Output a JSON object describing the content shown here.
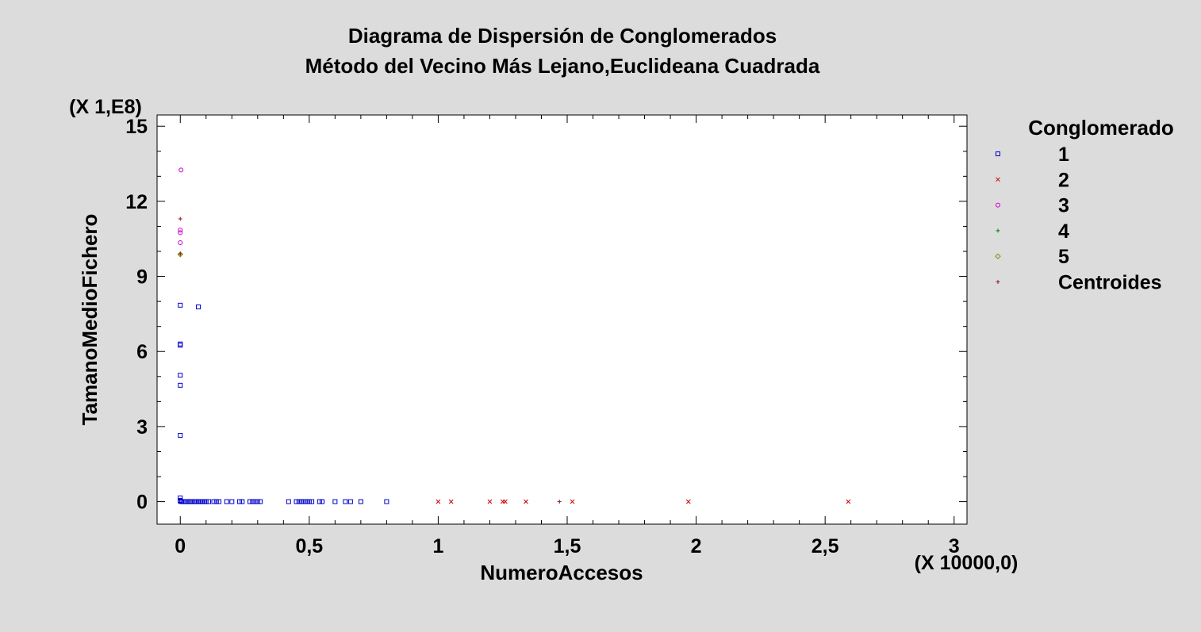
{
  "chart_data": {
    "type": "scatter",
    "title": "Diagrama de Dispersión de Conglomerados",
    "subtitle": "Método del Vecino Más Lejano,Euclideana Cuadrada",
    "xlabel": "NumeroAccesos",
    "ylabel": "TamanoMedioFichero",
    "x_multiplier": "(X 10000,0)",
    "y_multiplier": "(X 1,E8)",
    "xlim": [
      -0.09,
      3.05
    ],
    "ylim": [
      -0.9,
      15.45
    ],
    "x_ticks": [
      0,
      0.5,
      1,
      1.5,
      2,
      2.5,
      3
    ],
    "x_tick_labels": [
      "0",
      "0,5",
      "1",
      "1,5",
      "2",
      "2,5",
      "3"
    ],
    "y_ticks": [
      0,
      3,
      6,
      9,
      12,
      15
    ],
    "y_tick_labels": [
      "0",
      "3",
      "6",
      "9",
      "12",
      "15"
    ],
    "grid": false,
    "legend_position": "right",
    "legend_title": "Conglomerado",
    "series": [
      {
        "name": "1",
        "marker": "square",
        "color": "#0000cc",
        "points": [
          [
            0.0,
            0.02
          ],
          [
            0.005,
            0.0
          ],
          [
            0.01,
            0.0
          ],
          [
            0.015,
            0.0
          ],
          [
            0.02,
            0.0
          ],
          [
            0.025,
            0.0
          ],
          [
            0.03,
            0.0
          ],
          [
            0.035,
            0.0
          ],
          [
            0.04,
            0.0
          ],
          [
            0.045,
            0.0
          ],
          [
            0.05,
            0.0
          ],
          [
            0.055,
            0.0
          ],
          [
            0.06,
            0.0
          ],
          [
            0.065,
            0.0
          ],
          [
            0.07,
            0.0
          ],
          [
            0.075,
            0.0
          ],
          [
            0.08,
            0.0
          ],
          [
            0.085,
            0.0
          ],
          [
            0.09,
            0.0
          ],
          [
            0.095,
            0.0
          ],
          [
            0.1,
            0.0
          ],
          [
            0.11,
            0.0
          ],
          [
            0.13,
            0.0
          ],
          [
            0.14,
            0.0
          ],
          [
            0.15,
            0.0
          ],
          [
            0.18,
            0.0
          ],
          [
            0.2,
            0.0
          ],
          [
            0.23,
            0.0
          ],
          [
            0.24,
            0.0
          ],
          [
            0.27,
            0.0
          ],
          [
            0.28,
            0.0
          ],
          [
            0.29,
            0.0
          ],
          [
            0.3,
            0.0
          ],
          [
            0.31,
            0.0
          ],
          [
            0.42,
            0.0
          ],
          [
            0.45,
            0.0
          ],
          [
            0.46,
            0.0
          ],
          [
            0.47,
            0.0
          ],
          [
            0.48,
            0.0
          ],
          [
            0.49,
            0.0
          ],
          [
            0.5,
            0.0
          ],
          [
            0.51,
            0.0
          ],
          [
            0.54,
            0.0
          ],
          [
            0.55,
            0.0
          ],
          [
            0.6,
            0.0
          ],
          [
            0.64,
            0.0
          ],
          [
            0.66,
            0.0
          ],
          [
            0.7,
            0.0
          ],
          [
            0.8,
            0.0
          ],
          [
            0.0,
            0.15
          ],
          [
            0.0,
            0.05
          ],
          [
            0.0,
            2.65
          ],
          [
            0.0,
            4.65
          ],
          [
            0.0,
            5.05
          ],
          [
            0.0,
            6.25
          ],
          [
            0.0,
            6.3
          ],
          [
            0.0,
            7.85
          ],
          [
            0.07,
            7.78
          ]
        ]
      },
      {
        "name": "2",
        "marker": "x",
        "color": "#cc0000",
        "points": [
          [
            1.0,
            0.0
          ],
          [
            1.05,
            0.0
          ],
          [
            1.2,
            0.0
          ],
          [
            1.25,
            0.0
          ],
          [
            1.26,
            0.0
          ],
          [
            1.34,
            0.0
          ],
          [
            1.52,
            0.0
          ],
          [
            1.97,
            0.0
          ],
          [
            2.59,
            0.0
          ]
        ]
      },
      {
        "name": "3",
        "marker": "circle",
        "color": "#cc00cc",
        "points": [
          [
            0.003,
            13.25
          ],
          [
            0.0,
            10.85
          ],
          [
            0.0,
            10.75
          ],
          [
            0.0,
            10.35
          ]
        ]
      },
      {
        "name": "4",
        "marker": "plus",
        "color": "#008800",
        "points": [
          [
            0.0,
            9.9
          ]
        ]
      },
      {
        "name": "5",
        "marker": "diamond",
        "color": "#888800",
        "points": [
          [
            0.0,
            9.88
          ]
        ]
      },
      {
        "name": "Centroides",
        "marker": "plus",
        "color": "#8b1a1a",
        "points": [
          [
            0.0,
            11.3
          ],
          [
            0.0,
            9.9
          ],
          [
            1.47,
            0.0
          ]
        ]
      }
    ]
  }
}
